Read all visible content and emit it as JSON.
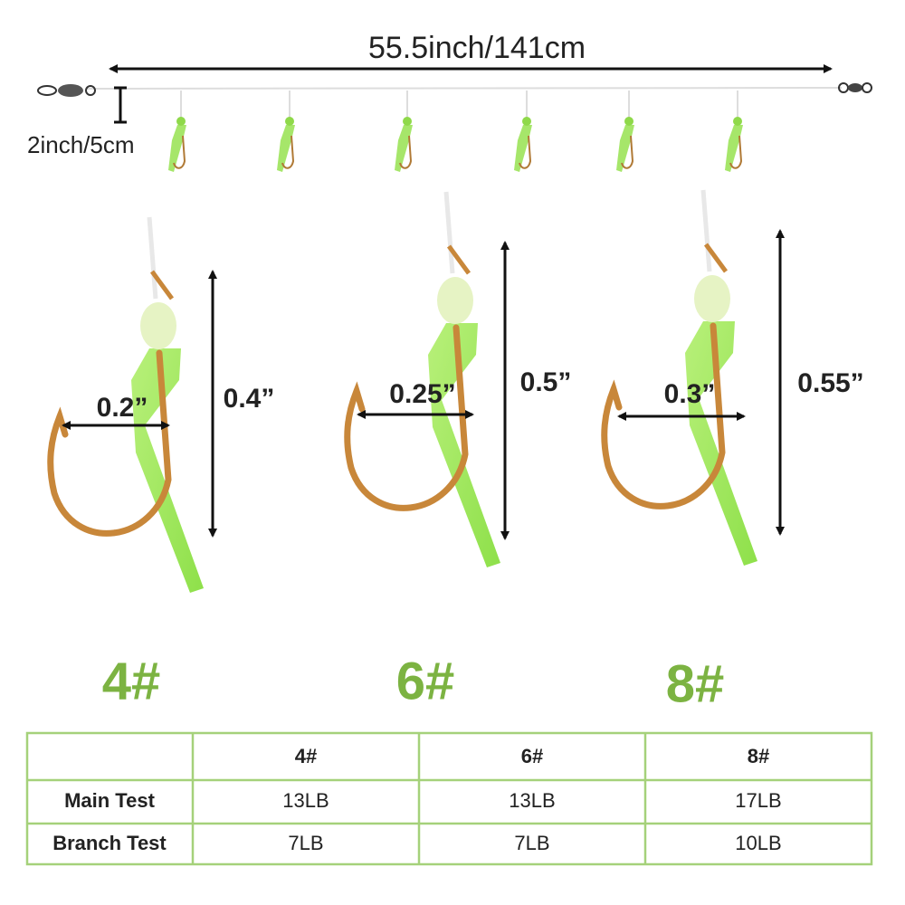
{
  "rig": {
    "length_label": "55.5inch/141cm",
    "spacing_label": "2inch/5cm"
  },
  "hooks": [
    {
      "size": "4#",
      "gap": "0.2”",
      "length": "0.4”"
    },
    {
      "size": "6#",
      "gap": "0.25”",
      "length": "0.5”"
    },
    {
      "size": "8#",
      "gap": "0.3”",
      "length": "0.55”"
    }
  ],
  "table": {
    "header": [
      "4#",
      "6#",
      "8#"
    ],
    "rows": [
      [
        "Main Test",
        "13LB",
        "13LB",
        "17LB"
      ],
      [
        "Branch Test",
        "7LB",
        "7LB",
        "10LB"
      ]
    ]
  }
}
